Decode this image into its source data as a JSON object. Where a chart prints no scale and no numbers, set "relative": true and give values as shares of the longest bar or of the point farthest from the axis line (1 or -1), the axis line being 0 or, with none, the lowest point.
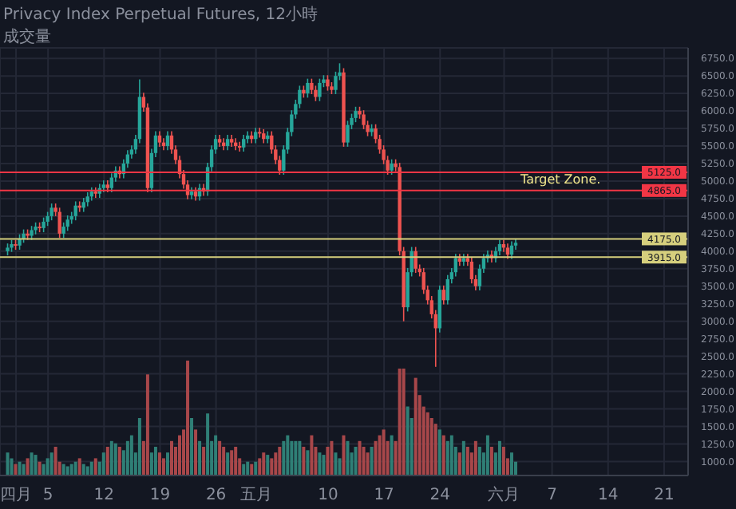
{
  "chart_data": [
    {
      "type": "candlestick",
      "title": "Privacy Index Perpetual Futures, 12小時",
      "x": [
        "--03-31T00:00",
        "--03-31T12:00",
        "--04-01T00:00",
        "--04-01T12:00",
        "--04-02T00:00",
        "--04-02T12:00",
        "--04-03T00:00",
        "--04-03T12:00",
        "--04-04T00:00",
        "--04-04T12:00",
        "--04-05T00:00",
        "--04-05T12:00",
        "--04-06T00:00",
        "--04-06T12:00",
        "--04-07T00:00",
        "--04-07T12:00",
        "--04-08T00:00",
        "--04-08T12:00",
        "--04-09T00:00",
        "--04-09T12:00",
        "--04-10T00:00",
        "--04-10T12:00",
        "--04-11T00:00",
        "--04-11T12:00",
        "--04-12T00:00",
        "--04-12T12:00",
        "--04-13T00:00",
        "--04-13T12:00",
        "--04-14T00:00",
        "--04-14T12:00",
        "--04-15T00:00",
        "--04-15T12:00",
        "--04-16T00:00",
        "--04-16T12:00",
        "--04-17T00:00",
        "--04-17T12:00",
        "--04-18T00:00",
        "--04-18T12:00",
        "--04-19T00:00",
        "--04-19T12:00",
        "--04-20T00:00",
        "--04-20T12:00",
        "--04-21T00:00",
        "--04-21T12:00",
        "--04-22T00:00",
        "--04-22T12:00",
        "--04-23T00:00",
        "--04-23T12:00",
        "--04-24T00:00",
        "--04-24T12:00",
        "--04-25T00:00",
        "--04-25T12:00",
        "--04-26T00:00",
        "--04-26T12:00",
        "--04-27T00:00",
        "--04-27T12:00",
        "--04-28T00:00",
        "--04-28T12:00",
        "--04-29T00:00",
        "--04-29T12:00",
        "--04-30T00:00",
        "--04-30T12:00",
        "--05-01T00:00",
        "--05-01T12:00",
        "--05-02T00:00",
        "--05-02T12:00",
        "--05-03T00:00",
        "--05-03T12:00",
        "--05-04T00:00",
        "--05-04T12:00",
        "--05-05T00:00",
        "--05-05T12:00",
        "--05-06T00:00",
        "--05-06T12:00",
        "--05-07T00:00",
        "--05-07T12:00",
        "--05-08T00:00",
        "--05-08T12:00",
        "--05-09T00:00",
        "--05-09T12:00",
        "--05-10T00:00",
        "--05-10T12:00",
        "--05-11T00:00",
        "--05-11T12:00",
        "--05-12T00:00",
        "--05-12T12:00",
        "--05-13T00:00",
        "--05-13T12:00",
        "--05-14T00:00",
        "--05-14T12:00",
        "--05-15T00:00",
        "--05-15T12:00",
        "--05-16T00:00",
        "--05-16T12:00",
        "--05-17T00:00",
        "--05-17T12:00",
        "--05-18T00:00",
        "--05-18T12:00",
        "--05-19T00:00",
        "--05-19T12:00",
        "--05-20T00:00",
        "--05-20T12:00",
        "--05-21T00:00",
        "--05-21T12:00",
        "--05-22T00:00",
        "--05-22T12:00",
        "--05-23T00:00",
        "--05-23T12:00",
        "--05-24T00:00",
        "--05-24T12:00",
        "--05-25T00:00",
        "--05-25T12:00",
        "--05-26T00:00",
        "--05-26T12:00",
        "--05-27T00:00",
        "--05-27T12:00",
        "--05-28T00:00",
        "--05-28T12:00",
        "--05-29T00:00",
        "--05-29T12:00",
        "--05-30T00:00",
        "--05-30T12:00",
        "--05-31T00:00",
        "--05-31T12:00",
        "--06-01T00:00",
        "--06-01T12:00",
        "--06-02T00:00",
        "--06-02T12:00"
      ],
      "ohlc": [
        [
          4000,
          4110,
          3940,
          4050
        ],
        [
          4050,
          4160,
          3990,
          4100
        ],
        [
          4100,
          4160,
          4020,
          4080
        ],
        [
          4080,
          4240,
          4020,
          4180
        ],
        [
          4180,
          4310,
          4120,
          4250
        ],
        [
          4250,
          4310,
          4160,
          4220
        ],
        [
          4220,
          4360,
          4160,
          4300
        ],
        [
          4300,
          4410,
          4240,
          4350
        ],
        [
          4350,
          4410,
          4270,
          4330
        ],
        [
          4330,
          4480,
          4270,
          4420
        ],
        [
          4420,
          4560,
          4360,
          4500
        ],
        [
          4500,
          4680,
          4440,
          4620
        ],
        [
          4620,
          4680,
          4500,
          4560
        ],
        [
          4560,
          4620,
          4190,
          4250
        ],
        [
          4250,
          4410,
          4190,
          4350
        ],
        [
          4350,
          4510,
          4290,
          4450
        ],
        [
          4450,
          4560,
          4390,
          4500
        ],
        [
          4500,
          4710,
          4440,
          4650
        ],
        [
          4650,
          4710,
          4560,
          4620
        ],
        [
          4620,
          4760,
          4560,
          4700
        ],
        [
          4700,
          4840,
          4640,
          4780
        ],
        [
          4780,
          4910,
          4720,
          4850
        ],
        [
          4850,
          4910,
          4760,
          4820
        ],
        [
          4820,
          4960,
          4760,
          4900
        ],
        [
          4900,
          5010,
          4840,
          4950
        ],
        [
          4950,
          5010,
          4840,
          4900
        ],
        [
          4900,
          5110,
          4840,
          5050
        ],
        [
          5050,
          5210,
          4990,
          5150
        ],
        [
          5150,
          5210,
          5040,
          5100
        ],
        [
          5100,
          5310,
          5040,
          5250
        ],
        [
          5250,
          5440,
          5190,
          5380
        ],
        [
          5380,
          5510,
          5320,
          5450
        ],
        [
          5450,
          5660,
          5390,
          5600
        ],
        [
          5600,
          6450,
          5540,
          6200
        ],
        [
          6200,
          6260,
          5990,
          6050
        ],
        [
          6050,
          6110,
          4840,
          4900
        ],
        [
          4900,
          5460,
          4840,
          5400
        ],
        [
          5400,
          5710,
          5340,
          5650
        ],
        [
          5650,
          5710,
          5490,
          5550
        ],
        [
          5550,
          5610,
          5440,
          5500
        ],
        [
          5500,
          5710,
          5440,
          5650
        ],
        [
          5650,
          5710,
          5390,
          5450
        ],
        [
          5450,
          5510,
          5240,
          5300
        ],
        [
          5300,
          5360,
          5040,
          5100
        ],
        [
          5100,
          5160,
          4890,
          4950
        ],
        [
          4950,
          5010,
          4740,
          4800
        ],
        [
          4800,
          4910,
          4740,
          4850
        ],
        [
          4850,
          4910,
          4720,
          4780
        ],
        [
          4780,
          4960,
          4720,
          4900
        ],
        [
          4900,
          4960,
          4790,
          4850
        ],
        [
          4850,
          5260,
          4790,
          5200
        ],
        [
          5200,
          5510,
          5140,
          5450
        ],
        [
          5450,
          5660,
          5390,
          5600
        ],
        [
          5600,
          5660,
          5490,
          5550
        ],
        [
          5550,
          5610,
          5440,
          5500
        ],
        [
          5500,
          5660,
          5440,
          5600
        ],
        [
          5600,
          5660,
          5490,
          5550
        ],
        [
          5550,
          5610,
          5440,
          5500
        ],
        [
          5500,
          5560,
          5420,
          5480
        ],
        [
          5480,
          5660,
          5420,
          5600
        ],
        [
          5600,
          5710,
          5540,
          5650
        ],
        [
          5650,
          5710,
          5540,
          5600
        ],
        [
          5600,
          5760,
          5540,
          5700
        ],
        [
          5700,
          5760,
          5620,
          5680
        ],
        [
          5680,
          5740,
          5540,
          5600
        ],
        [
          5600,
          5710,
          5540,
          5650
        ],
        [
          5650,
          5710,
          5390,
          5450
        ],
        [
          5450,
          5510,
          5240,
          5300
        ],
        [
          5300,
          5360,
          5090,
          5150
        ],
        [
          5150,
          5510,
          5090,
          5450
        ],
        [
          5450,
          5760,
          5390,
          5700
        ],
        [
          5700,
          6010,
          5640,
          5950
        ],
        [
          5950,
          6160,
          5890,
          6100
        ],
        [
          6100,
          6360,
          6040,
          6300
        ],
        [
          6300,
          6360,
          6190,
          6250
        ],
        [
          6250,
          6460,
          6190,
          6400
        ],
        [
          6400,
          6460,
          6240,
          6300
        ],
        [
          6300,
          6360,
          6140,
          6200
        ],
        [
          6200,
          6460,
          6140,
          6400
        ],
        [
          6400,
          6510,
          6340,
          6450
        ],
        [
          6450,
          6510,
          6290,
          6350
        ],
        [
          6350,
          6410,
          6240,
          6300
        ],
        [
          6300,
          6560,
          6240,
          6500
        ],
        [
          6500,
          6680,
          6440,
          6550
        ],
        [
          6550,
          6610,
          5490,
          5550
        ],
        [
          5550,
          5860,
          5490,
          5800
        ],
        [
          5800,
          5960,
          5740,
          5900
        ],
        [
          5900,
          6060,
          5840,
          6000
        ],
        [
          6000,
          6060,
          5890,
          5950
        ],
        [
          5950,
          6010,
          5740,
          5800
        ],
        [
          5800,
          5860,
          5640,
          5700
        ],
        [
          5700,
          5810,
          5640,
          5750
        ],
        [
          5750,
          5810,
          5540,
          5600
        ],
        [
          5600,
          5660,
          5390,
          5450
        ],
        [
          5450,
          5510,
          5240,
          5300
        ],
        [
          5300,
          5360,
          5090,
          5150
        ],
        [
          5150,
          5310,
          5090,
          5250
        ],
        [
          5250,
          5310,
          5140,
          5200
        ],
        [
          5200,
          5260,
          3940,
          4000
        ],
        [
          4000,
          4060,
          3000,
          3200
        ],
        [
          3200,
          3760,
          3140,
          3700
        ],
        [
          3700,
          4060,
          3640,
          4000
        ],
        [
          4000,
          4060,
          3690,
          3750
        ],
        [
          3750,
          3810,
          3640,
          3700
        ],
        [
          3700,
          3760,
          3390,
          3450
        ],
        [
          3450,
          3510,
          3240,
          3300
        ],
        [
          3300,
          3360,
          3040,
          3100
        ],
        [
          3100,
          3160,
          2350,
          2900
        ],
        [
          2900,
          3510,
          2840,
          3450
        ],
        [
          3450,
          3510,
          3240,
          3300
        ],
        [
          3300,
          3660,
          3240,
          3600
        ],
        [
          3600,
          3760,
          3540,
          3700
        ],
        [
          3700,
          3960,
          3640,
          3900
        ],
        [
          3900,
          3960,
          3790,
          3850
        ],
        [
          3850,
          3960,
          3790,
          3900
        ],
        [
          3900,
          3960,
          3790,
          3850
        ],
        [
          3850,
          3910,
          3540,
          3600
        ],
        [
          3600,
          3660,
          3440,
          3500
        ],
        [
          3500,
          3810,
          3440,
          3750
        ],
        [
          3750,
          3960,
          3690,
          3900
        ],
        [
          3900,
          4010,
          3840,
          3950
        ],
        [
          3950,
          4010,
          3840,
          3900
        ],
        [
          3900,
          4060,
          3840,
          4000
        ],
        [
          4000,
          4160,
          3940,
          4100
        ],
        [
          4100,
          4160,
          3990,
          4050
        ],
        [
          4050,
          4110,
          3890,
          3950
        ],
        [
          3950,
          4140,
          3890,
          4080
        ],
        [
          4080,
          4180,
          4020,
          4120
        ]
      ],
      "colors": [
        "#26a69a",
        "#26a69a",
        "#ef5350",
        "#26a69a",
        "#26a69a",
        "#ef5350",
        "#26a69a",
        "#26a69a",
        "#ef5350",
        "#26a69a",
        "#26a69a",
        "#26a69a",
        "#ef5350",
        "#ef5350",
        "#26a69a",
        "#26a69a",
        "#26a69a",
        "#26a69a",
        "#ef5350",
        "#26a69a",
        "#26a69a",
        "#26a69a",
        "#ef5350",
        "#26a69a",
        "#26a69a",
        "#ef5350",
        "#26a69a",
        "#26a69a",
        "#ef5350",
        "#26a69a",
        "#26a69a",
        "#26a69a",
        "#26a69a",
        "#26a69a",
        "#ef5350",
        "#ef5350",
        "#26a69a",
        "#26a69a",
        "#ef5350",
        "#ef5350",
        "#26a69a",
        "#ef5350",
        "#ef5350",
        "#ef5350",
        "#ef5350",
        "#ef5350",
        "#26a69a",
        "#ef5350",
        "#26a69a",
        "#ef5350",
        "#26a69a",
        "#26a69a",
        "#26a69a",
        "#ef5350",
        "#ef5350",
        "#26a69a",
        "#ef5350",
        "#ef5350",
        "#ef5350",
        "#26a69a",
        "#26a69a",
        "#ef5350",
        "#26a69a",
        "#ef5350",
        "#ef5350",
        "#26a69a",
        "#ef5350",
        "#ef5350",
        "#ef5350",
        "#26a69a",
        "#26a69a",
        "#26a69a",
        "#26a69a",
        "#26a69a",
        "#ef5350",
        "#26a69a",
        "#ef5350",
        "#ef5350",
        "#26a69a",
        "#26a69a",
        "#ef5350",
        "#ef5350",
        "#26a69a",
        "#26a69a",
        "#ef5350",
        "#26a69a",
        "#26a69a",
        "#26a69a",
        "#ef5350",
        "#ef5350",
        "#ef5350",
        "#26a69a",
        "#ef5350",
        "#ef5350",
        "#ef5350",
        "#ef5350",
        "#26a69a",
        "#ef5350",
        "#ef5350",
        "#ef5350",
        "#26a69a",
        "#26a69a",
        "#ef5350",
        "#ef5350",
        "#ef5350",
        "#ef5350",
        "#ef5350",
        "#ef5350",
        "#26a69a",
        "#ef5350",
        "#26a69a",
        "#26a69a",
        "#26a69a",
        "#ef5350",
        "#26a69a",
        "#ef5350",
        "#ef5350",
        "#ef5350",
        "#26a69a",
        "#26a69a",
        "#26a69a",
        "#ef5350",
        "#26a69a",
        "#26a69a",
        "#ef5350",
        "#ef5350",
        "#26a69a",
        "#26a69a"
      ],
      "xlim": [
        "--03-30T00:00",
        "--06-24T00:00"
      ],
      "xticks": [
        {
          "value": "--04-01",
          "label": "四月"
        },
        {
          "value": "--04-05",
          "label": "5"
        },
        {
          "value": "--04-12",
          "label": "12"
        },
        {
          "value": "--04-19",
          "label": "19"
        },
        {
          "value": "--04-26",
          "label": "26"
        },
        {
          "value": "--05-01",
          "label": "五月"
        },
        {
          "value": "--05-10",
          "label": "10"
        },
        {
          "value": "--05-17",
          "label": "17"
        },
        {
          "value": "--05-24",
          "label": "24"
        },
        {
          "value": "--06-01",
          "label": "六月"
        },
        {
          "value": "--06-07",
          "label": "7"
        },
        {
          "value": "--06-14",
          "label": "14"
        },
        {
          "value": "--06-21",
          "label": "21"
        }
      ],
      "ylim": [
        800,
        6900
      ],
      "yticks": [
        {
          "value": 1000,
          "label": "1000.0"
        },
        {
          "value": 1250,
          "label": "1250.0"
        },
        {
          "value": 1500,
          "label": "1500.0"
        },
        {
          "value": 1750,
          "label": "1750.0"
        },
        {
          "value": 2000,
          "label": "2000.0"
        },
        {
          "value": 2250,
          "label": "2250.0"
        },
        {
          "value": 2500,
          "label": "2500.0"
        },
        {
          "value": 2750,
          "label": "2750.0"
        },
        {
          "value": 3000,
          "label": "3000.0"
        },
        {
          "value": 3250,
          "label": "3250.0"
        },
        {
          "value": 3500,
          "label": "3500.0"
        },
        {
          "value": 3750,
          "label": "3750.0"
        },
        {
          "value": 4000,
          "label": "4000.0"
        },
        {
          "value": 4250,
          "label": "4250.0"
        },
        {
          "value": 4500,
          "label": "4500.0"
        },
        {
          "value": 4750,
          "label": "4750.0"
        },
        {
          "value": 5000,
          "label": "5000.0"
        },
        {
          "value": 5250,
          "label": "5250.0"
        },
        {
          "value": 5500,
          "label": "5500.0"
        },
        {
          "value": 5750,
          "label": "5750.0"
        },
        {
          "value": 6000,
          "label": "6000.0"
        },
        {
          "value": 6250,
          "label": "6250.0"
        },
        {
          "value": 6500,
          "label": "6500.0"
        },
        {
          "value": 6750,
          "label": "6750.0"
        }
      ],
      "grid": true,
      "ref_lines": [
        {
          "axis": "y",
          "value": 5125,
          "label": "5125.0",
          "color": "#f23645"
        },
        {
          "axis": "y",
          "value": 4865,
          "label": "4865.0",
          "color": "#f23645"
        },
        {
          "axis": "y",
          "value": 4175,
          "label": "4175.0",
          "color": "#d6cf7d"
        },
        {
          "axis": "y",
          "value": 3915,
          "label": "3915.0",
          "color": "#d6cf7d"
        }
      ],
      "annotations": [
        "Target Zone."
      ]
    },
    {
      "type": "bar",
      "title": "成交量",
      "relative": true,
      "xlim": [
        "--03-30T00:00",
        "--06-24T00:00"
      ],
      "x": [
        "--03-31T00:00",
        "--03-31T12:00",
        "--04-01T00:00",
        "--04-01T12:00",
        "--04-02T00:00",
        "--04-02T12:00",
        "--04-03T00:00",
        "--04-03T12:00",
        "--04-04T00:00",
        "--04-04T12:00",
        "--04-05T00:00",
        "--04-05T12:00",
        "--04-06T00:00",
        "--04-06T12:00",
        "--04-07T00:00",
        "--04-07T12:00",
        "--04-08T00:00",
        "--04-08T12:00",
        "--04-09T00:00",
        "--04-09T12:00",
        "--04-10T00:00",
        "--04-10T12:00",
        "--04-11T00:00",
        "--04-11T12:00",
        "--04-12T00:00",
        "--04-12T12:00",
        "--04-13T00:00",
        "--04-13T12:00",
        "--04-14T00:00",
        "--04-14T12:00",
        "--04-15T00:00",
        "--04-15T12:00",
        "--04-16T00:00",
        "--04-16T12:00",
        "--04-17T00:00",
        "--04-17T12:00",
        "--04-18T00:00",
        "--04-18T12:00",
        "--04-19T00:00",
        "--04-19T12:00",
        "--04-20T00:00",
        "--04-20T12:00",
        "--04-21T00:00",
        "--04-21T12:00",
        "--04-22T00:00",
        "--04-22T12:00",
        "--04-23T00:00",
        "--04-23T12:00",
        "--04-24T00:00",
        "--04-24T12:00",
        "--04-25T00:00",
        "--04-25T12:00",
        "--04-26T00:00",
        "--04-26T12:00",
        "--04-27T00:00",
        "--04-27T12:00",
        "--04-28T00:00",
        "--04-28T12:00",
        "--04-29T00:00",
        "--04-29T12:00",
        "--04-30T00:00",
        "--04-30T12:00",
        "--05-01T00:00",
        "--05-01T12:00",
        "--05-02T00:00",
        "--05-02T12:00",
        "--05-03T00:00",
        "--05-03T12:00",
        "--05-04T00:00",
        "--05-04T12:00",
        "--05-05T00:00",
        "--05-05T12:00",
        "--05-06T00:00",
        "--05-06T12:00",
        "--05-07T00:00",
        "--05-07T12:00",
        "--05-08T00:00",
        "--05-08T12:00",
        "--05-09T00:00",
        "--05-09T12:00",
        "--05-10T00:00",
        "--05-10T12:00",
        "--05-11T00:00",
        "--05-11T12:00",
        "--05-12T00:00",
        "--05-12T12:00",
        "--05-13T00:00",
        "--05-13T12:00",
        "--05-14T00:00",
        "--05-14T12:00",
        "--05-15T00:00",
        "--05-15T12:00",
        "--05-16T00:00",
        "--05-16T12:00",
        "--05-17T00:00",
        "--05-17T12:00",
        "--05-18T00:00",
        "--05-18T12:00",
        "--05-19T00:00",
        "--05-19T12:00",
        "--05-20T00:00",
        "--05-20T12:00",
        "--05-21T00:00",
        "--05-21T12:00",
        "--05-22T00:00",
        "--05-22T12:00",
        "--05-23T00:00",
        "--05-23T12:00",
        "--05-24T00:00",
        "--05-24T12:00",
        "--05-25T00:00",
        "--05-25T12:00",
        "--05-26T00:00",
        "--05-26T12:00",
        "--05-27T00:00",
        "--05-27T12:00",
        "--05-28T00:00",
        "--05-28T12:00",
        "--05-29T00:00",
        "--05-29T12:00",
        "--05-30T00:00",
        "--05-30T12:00",
        "--05-31T00:00",
        "--05-31T12:00",
        "--06-01T00:00",
        "--06-01T12:00",
        "--06-02T00:00",
        "--06-02T12:00"
      ],
      "values": [
        0.2,
        0.15,
        0.1,
        0.12,
        0.1,
        0.15,
        0.2,
        0.18,
        0.12,
        0.1,
        0.15,
        0.2,
        0.25,
        0.12,
        0.1,
        0.08,
        0.1,
        0.12,
        0.15,
        0.1,
        0.08,
        0.12,
        0.15,
        0.12,
        0.2,
        0.25,
        0.3,
        0.28,
        0.25,
        0.22,
        0.3,
        0.35,
        0.2,
        0.5,
        0.3,
        0.88,
        0.2,
        0.25,
        0.2,
        0.15,
        0.2,
        0.3,
        0.25,
        0.35,
        0.4,
        1,
        0.5,
        0.4,
        0.3,
        0.25,
        0.54,
        0.3,
        0.35,
        0.3,
        0.25,
        0.2,
        0.22,
        0.25,
        0.15,
        0.1,
        0.12,
        0.1,
        0.12,
        0.15,
        0.2,
        0.18,
        0.15,
        0.2,
        0.25,
        0.3,
        0.35,
        0.3,
        0.3,
        0.3,
        0.25,
        0.22,
        0.35,
        0.25,
        0.2,
        0.18,
        0.25,
        0.3,
        0.2,
        0.15,
        0.35,
        0.3,
        0.2,
        0.25,
        0.3,
        0.25,
        0.2,
        0.25,
        0.3,
        0.35,
        0.4,
        0.3,
        0.35,
        0.3,
        0.93,
        0.93,
        0.6,
        0.5,
        0.85,
        0.7,
        0.6,
        0.55,
        0.5,
        0.45,
        0.4,
        0.35,
        0.3,
        0.35,
        0.25,
        0.2,
        0.3,
        0.25,
        0.2,
        0.3,
        0.25,
        0.2,
        0.35,
        0.25,
        0.2,
        0.3,
        0.25,
        0.15,
        0.2,
        0.12
      ],
      "colors": [
        "#2f7f76",
        "#2f7f76",
        "#a8474a",
        "#2f7f76",
        "#2f7f76",
        "#a8474a",
        "#2f7f76",
        "#2f7f76",
        "#a8474a",
        "#2f7f76",
        "#2f7f76",
        "#2f7f76",
        "#a8474a",
        "#a8474a",
        "#2f7f76",
        "#2f7f76",
        "#2f7f76",
        "#2f7f76",
        "#a8474a",
        "#2f7f76",
        "#2f7f76",
        "#2f7f76",
        "#a8474a",
        "#2f7f76",
        "#2f7f76",
        "#a8474a",
        "#2f7f76",
        "#2f7f76",
        "#a8474a",
        "#2f7f76",
        "#2f7f76",
        "#2f7f76",
        "#2f7f76",
        "#2f7f76",
        "#a8474a",
        "#a8474a",
        "#2f7f76",
        "#2f7f76",
        "#a8474a",
        "#a8474a",
        "#2f7f76",
        "#a8474a",
        "#a8474a",
        "#a8474a",
        "#a8474a",
        "#a8474a",
        "#2f7f76",
        "#a8474a",
        "#2f7f76",
        "#a8474a",
        "#2f7f76",
        "#2f7f76",
        "#2f7f76",
        "#a8474a",
        "#a8474a",
        "#2f7f76",
        "#a8474a",
        "#a8474a",
        "#a8474a",
        "#2f7f76",
        "#2f7f76",
        "#a8474a",
        "#2f7f76",
        "#a8474a",
        "#a8474a",
        "#2f7f76",
        "#a8474a",
        "#a8474a",
        "#a8474a",
        "#2f7f76",
        "#2f7f76",
        "#2f7f76",
        "#2f7f76",
        "#2f7f76",
        "#a8474a",
        "#2f7f76",
        "#a8474a",
        "#a8474a",
        "#2f7f76",
        "#2f7f76",
        "#a8474a",
        "#a8474a",
        "#2f7f76",
        "#2f7f76",
        "#a8474a",
        "#2f7f76",
        "#2f7f76",
        "#2f7f76",
        "#a8474a",
        "#a8474a",
        "#a8474a",
        "#2f7f76",
        "#a8474a",
        "#a8474a",
        "#a8474a",
        "#a8474a",
        "#2f7f76",
        "#a8474a",
        "#a8474a",
        "#a8474a",
        "#2f7f76",
        "#2f7f76",
        "#a8474a",
        "#a8474a",
        "#a8474a",
        "#a8474a",
        "#a8474a",
        "#a8474a",
        "#2f7f76",
        "#a8474a",
        "#2f7f76",
        "#2f7f76",
        "#2f7f76",
        "#a8474a",
        "#2f7f76",
        "#a8474a",
        "#a8474a",
        "#a8474a",
        "#2f7f76",
        "#2f7f76",
        "#2f7f76",
        "#a8474a",
        "#2f7f76",
        "#2f7f76",
        "#a8474a",
        "#a8474a",
        "#2f7f76",
        "#2f7f76"
      ]
    }
  ]
}
